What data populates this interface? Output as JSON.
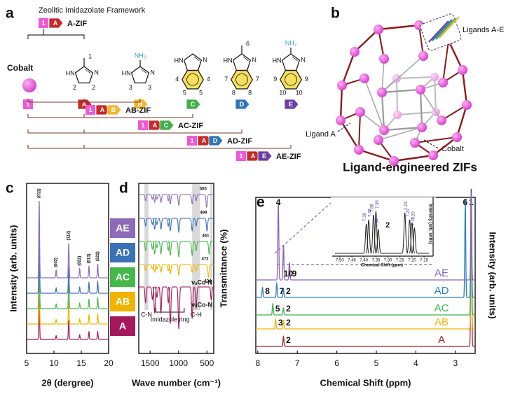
{
  "panel_a": {
    "label": "a",
    "title": "Zeolitic Imidazolate Framework",
    "metal": "Cobalt",
    "metal_badge": "1",
    "metal_color": "#ee5ad6",
    "ligands": [
      {
        "badge": "A",
        "color": "#c62a2a",
        "atoms": [
          "N",
          "HN"
        ],
        "methyl": true,
        "numbers": [
          "1",
          "2",
          "2"
        ]
      },
      {
        "badge": "B",
        "color": "#f2b630",
        "atoms": [
          "N",
          "HN"
        ],
        "amine": "NH₂",
        "numbers": [
          "3",
          "3"
        ]
      },
      {
        "badge": "C",
        "color": "#41b04a",
        "atoms": [
          "N",
          "HN"
        ],
        "fused": true,
        "numbers": [
          "4",
          "5",
          "5",
          "4"
        ]
      },
      {
        "badge": "D",
        "color": "#2f75ba",
        "atoms": [
          "N",
          "HN"
        ],
        "methyl": true,
        "fused": true,
        "numbers": [
          "6",
          "7",
          "8",
          "8",
          "7"
        ]
      },
      {
        "badge": "E",
        "color": "#6b3fa0",
        "atoms": [
          "N",
          "HN"
        ],
        "amine": "NH₂",
        "fused": true,
        "numbers": [
          "9",
          "10",
          "10",
          "9"
        ]
      }
    ],
    "frameworks": [
      {
        "badges": [
          "1",
          "A"
        ],
        "name": "A-ZIF"
      },
      {
        "badges": [
          "1",
          "A",
          "B"
        ],
        "name": "AB-ZIF"
      },
      {
        "badges": [
          "1",
          "A",
          "C"
        ],
        "name": "AC-ZIF"
      },
      {
        "badges": [
          "1",
          "A",
          "D"
        ],
        "name": "AD-ZIF"
      },
      {
        "badges": [
          "1",
          "A",
          "E"
        ],
        "name": "AE-ZIF"
      }
    ]
  },
  "panel_b": {
    "label": "b",
    "inset_label": "Ligands A-E",
    "ligand_label": "Ligand A",
    "metal_label": "Cobalt",
    "caption": "Ligand-engineered ZIFs"
  },
  "chart_data": [
    {
      "label": "c",
      "type": "line",
      "xlabel": "2θ (dergree)",
      "ylabel": "Intensity (arb. units)",
      "xlim": [
        5,
        20
      ],
      "xticks": [
        5,
        10,
        15,
        20
      ],
      "peaks": [
        7.3,
        10.4,
        12.7,
        14.7,
        16.4,
        18.0
      ],
      "peak_labels": [
        "(011)",
        "(002)",
        "(112)",
        "(022)",
        "(013)",
        "(222)"
      ],
      "series": [
        {
          "name": "A",
          "color": "#a3195b",
          "values": [
            60,
            5,
            25,
            6,
            10,
            10
          ]
        },
        {
          "name": "AB",
          "color": "#f0b400",
          "values": [
            70,
            6,
            30,
            7,
            12,
            13
          ]
        },
        {
          "name": "AC",
          "color": "#45b84a",
          "values": [
            75,
            6,
            32,
            7,
            12,
            14
          ]
        },
        {
          "name": "AD",
          "color": "#3a72b8",
          "values": [
            80,
            7,
            35,
            8,
            14,
            15
          ]
        },
        {
          "name": "AE",
          "color": "#8e6bb8",
          "values": [
            100,
            10,
            45,
            12,
            15,
            18
          ]
        }
      ]
    },
    {
      "label": "d",
      "type": "line",
      "xlabel": "Wave number (cm⁻¹)",
      "ylabel": "Transmittance (%)",
      "xlim": [
        1700,
        380
      ],
      "xticks": [
        1500,
        1000,
        500
      ],
      "bands": [
        {
          "range": [
            1600,
            1530
          ],
          "label": "C-N"
        },
        {
          "range": [
            760,
            620
          ],
          "label": "C-H"
        },
        {
          "range": [
            440,
            400
          ]
        }
      ],
      "ring": {
        "range": [
          1400,
          900
        ],
        "label": "Imidazole ring"
      },
      "absorptions": [
        1580,
        1460,
        1420,
        1380,
        1310,
        1180,
        1145,
        995,
        760,
        690
      ],
      "series": [
        {
          "name": "A",
          "color": "#a3195b",
          "values": [
            15,
            12,
            25,
            10,
            25,
            15,
            35,
            40,
            30,
            20
          ],
          "co_n": 424,
          "mode": "νₛCo-N"
        },
        {
          "name": "AB",
          "color": "#f0b400",
          "values": [
            8,
            6,
            10,
            6,
            10,
            8,
            12,
            14,
            10,
            8
          ],
          "co_n": 472,
          "mode": "νₛCo-N"
        },
        {
          "name": "AC",
          "color": "#45b84a",
          "values": [
            12,
            10,
            16,
            8,
            16,
            12,
            18,
            20,
            18,
            12
          ],
          "co_n": 461
        },
        {
          "name": "AD",
          "color": "#3a72b8",
          "values": [
            10,
            8,
            14,
            8,
            14,
            10,
            16,
            18,
            16,
            10
          ],
          "co_n": 499
        },
        {
          "name": "AE",
          "color": "#8e6bb8",
          "values": [
            8,
            6,
            10,
            6,
            10,
            8,
            12,
            14,
            12,
            8
          ],
          "co_n": 505
        }
      ]
    },
    {
      "label": "e",
      "type": "line",
      "xlabel": "Chemical Shift (ppm)",
      "ylabel": "Intensity (arb. units)",
      "xlim": [
        8.05,
        2.5
      ],
      "xticks": [
        8,
        7,
        6,
        5,
        4,
        3
      ],
      "series": [
        {
          "name": "A",
          "color": "#a5222a",
          "peaks": [
            7.35,
            2.6
          ],
          "values": [
            14,
            225
          ],
          "peak_labels": [
            "2",
            "1"
          ]
        },
        {
          "name": "AB",
          "color": "#f0b400",
          "peaks": [
            7.55,
            7.35,
            2.6
          ],
          "values": [
            14,
            12,
            190
          ],
          "peak_labels": [
            "3",
            "2",
            null
          ]
        },
        {
          "name": "AC",
          "color": "#3cb54a",
          "peaks": [
            7.62,
            7.35,
            2.6
          ],
          "values": [
            16,
            10,
            170
          ],
          "peak_labels": [
            "5",
            "2",
            null
          ]
        },
        {
          "name": "AD",
          "color": "#2f7fc1",
          "peaks": [
            7.88,
            7.52,
            7.35,
            2.75,
            2.6
          ],
          "values": [
            14,
            20,
            12,
            140,
            150
          ],
          "peak_labels": [
            "8",
            "7",
            "2",
            "6",
            null
          ]
        },
        {
          "name": "AE",
          "color": "#8a63b8",
          "peaks": [
            7.48,
            7.35,
            7.2,
            2.6
          ],
          "values": [
            110,
            50,
            25,
            120
          ],
          "peak_labels": [
            "4",
            "10",
            "9",
            null
          ]
        }
      ],
      "inset": {
        "xlim": [
          7.52,
          7.13
        ],
        "xticks": [
          {
            "value": 7.5,
            "label": "7.50"
          },
          7.45,
          {
            "value": 7.4,
            "label": "7.40"
          },
          7.35,
          {
            "value": 7.3,
            "label": "7.30"
          },
          7.25,
          {
            "value": 7.2,
            "label": "7.20"
          },
          7.15
        ],
        "xlabel": "Chemical Shift (ppm)",
        "ylabel": "Intensity (arb. units)",
        "color": "#222",
        "peaks": [
          7.39,
          7.38,
          7.36,
          7.35,
          7.34,
          7.23,
          7.21,
          7.2,
          7.19
        ],
        "values": [
          42,
          48,
          55,
          60,
          34,
          58,
          48,
          44,
          36
        ],
        "peak_labels": [
          "7.39",
          "7.38",
          "7.36",
          "7.35",
          "7.34",
          "7.23",
          "7.21",
          "7.20",
          "7.19"
        ],
        "annotation": "2",
        "label_color": "#3a3a9a"
      }
    }
  ]
}
